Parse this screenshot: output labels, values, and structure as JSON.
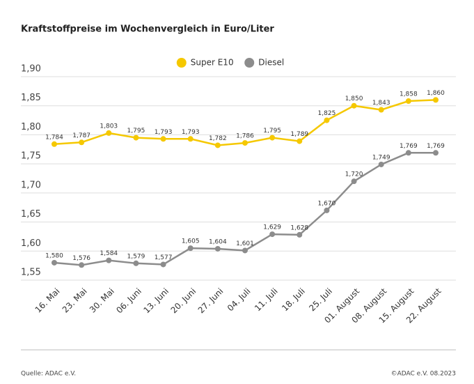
{
  "chart_data": {
    "type": "line",
    "title": "Kraftstoffpreise im Wochenvergleich in Euro/Liter",
    "categories": [
      "16. Mai",
      "23. Mai",
      "30. Mai",
      "06. Juni",
      "13. Juni",
      "20. Juni",
      "27. Juni",
      "04. Juli",
      "11. Juli",
      "18. Juli",
      "25. Juli",
      "01. August",
      "08. August",
      "15. August",
      "22. August"
    ],
    "series": [
      {
        "name": "Super E10",
        "color": "#f5c800",
        "values": [
          1.784,
          1.787,
          1.803,
          1.795,
          1.793,
          1.793,
          1.782,
          1.786,
          1.795,
          1.789,
          1.825,
          1.85,
          1.843,
          1.858,
          1.86
        ],
        "value_labels": [
          "1,784",
          "1,787",
          "1,803",
          "1,795",
          "1,793",
          "1,793",
          "1,782",
          "1,786",
          "1,795",
          "1,789",
          "1,825",
          "1,850",
          "1,843",
          "1,858",
          "1,860"
        ]
      },
      {
        "name": "Diesel",
        "color": "#8c8c8c",
        "values": [
          1.58,
          1.576,
          1.584,
          1.579,
          1.577,
          1.605,
          1.604,
          1.601,
          1.629,
          1.628,
          1.67,
          1.72,
          1.749,
          1.769,
          1.769
        ],
        "value_labels": [
          "1,580",
          "1,576",
          "1,584",
          "1,579",
          "1,577",
          "1,605",
          "1,604",
          "1,601",
          "1,629",
          "1,628",
          "1,670",
          "1,720",
          "1,749",
          "1,769",
          "1,769"
        ]
      }
    ],
    "ylim": [
      1.55,
      1.9
    ],
    "yticks": [
      {
        "value": 1.55,
        "label": "1,55"
      },
      {
        "value": 1.6,
        "label": "1,60"
      },
      {
        "value": 1.65,
        "label": "1,65"
      },
      {
        "value": 1.7,
        "label": "1,70"
      },
      {
        "value": 1.75,
        "label": "1,75"
      },
      {
        "value": 1.8,
        "label": "1,80"
      },
      {
        "value": 1.85,
        "label": "1,85"
      },
      {
        "value": 1.9,
        "label": "1,90"
      }
    ],
    "grid": true,
    "legend": "top",
    "source": "Quelle: ADAC e.V.",
    "copyright": "©ADAC e.V. 08.2023"
  }
}
